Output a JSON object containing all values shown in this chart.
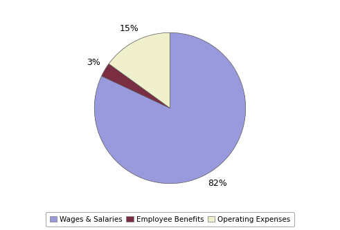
{
  "labels": [
    "Wages & Salaries",
    "Employee Benefits",
    "Operating Expenses"
  ],
  "values": [
    82,
    3,
    15
  ],
  "colors": [
    "#9999dd",
    "#7b2d42",
    "#efefcc"
  ],
  "edge_color": "#555555",
  "pct_labels": [
    "82%",
    "3%",
    "15%"
  ],
  "startangle": 90,
  "background_color": "#ffffff",
  "legend_box_color": "#ffffff",
  "legend_edge_color": "#aaaaaa",
  "figsize": [
    4.91,
    3.33
  ],
  "dpi": 100
}
